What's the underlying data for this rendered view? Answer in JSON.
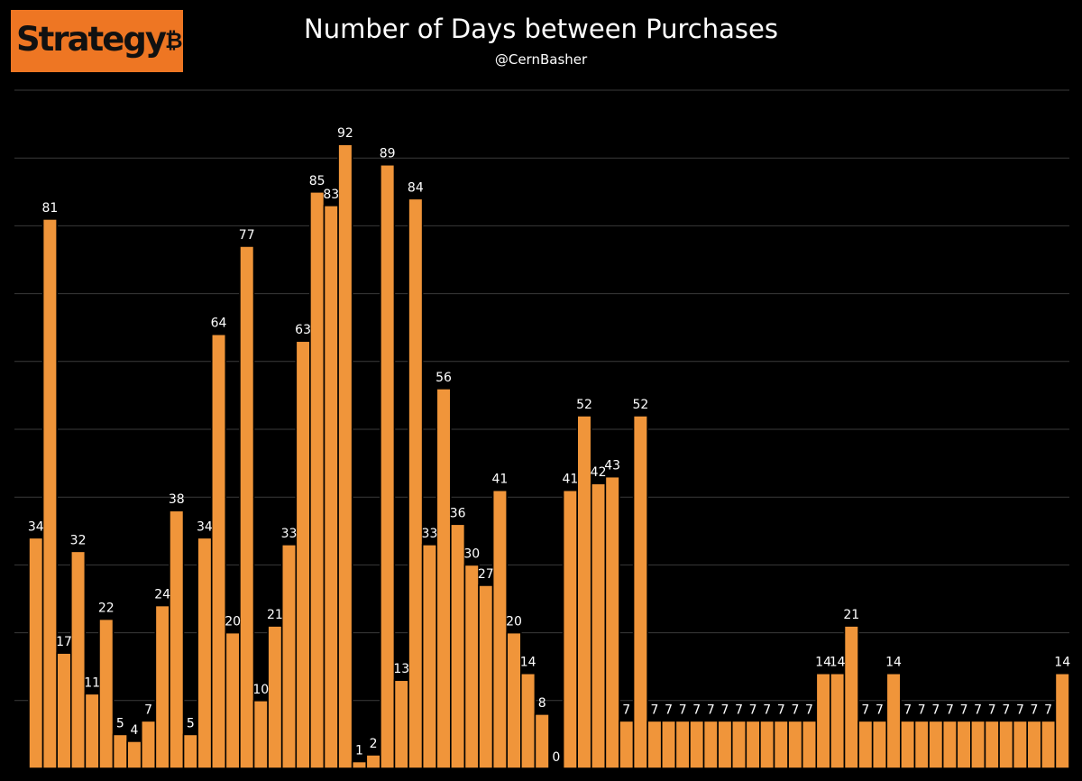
{
  "logo": {
    "text": "Strategy",
    "mark": "₿"
  },
  "chart_data": {
    "type": "bar",
    "title": "Number of Days between Purchases",
    "subtitle": "@CernBasher",
    "xlabel": "",
    "ylabel": "",
    "ylim": [
      0,
      100
    ],
    "grid": true,
    "legend": "none",
    "colors": {
      "background": "#000000",
      "bar": "#f0953a",
      "bar_edge": "#000000",
      "grid": "#3a3a3a",
      "label": "#ffffff",
      "logo_background": "#ee7623",
      "logo_text": "#111111"
    },
    "values": [
      34,
      81,
      17,
      32,
      11,
      22,
      5,
      4,
      7,
      24,
      38,
      5,
      34,
      64,
      20,
      77,
      10,
      21,
      33,
      63,
      85,
      83,
      92,
      1,
      2,
      89,
      13,
      84,
      33,
      56,
      36,
      30,
      27,
      41,
      20,
      14,
      8,
      0,
      41,
      52,
      42,
      43,
      7,
      52,
      7,
      7,
      7,
      7,
      7,
      7,
      7,
      7,
      7,
      7,
      7,
      7,
      14,
      14,
      21,
      7,
      7,
      14,
      7,
      7,
      7,
      7,
      7,
      7,
      7,
      7,
      7,
      7,
      7,
      14
    ]
  }
}
